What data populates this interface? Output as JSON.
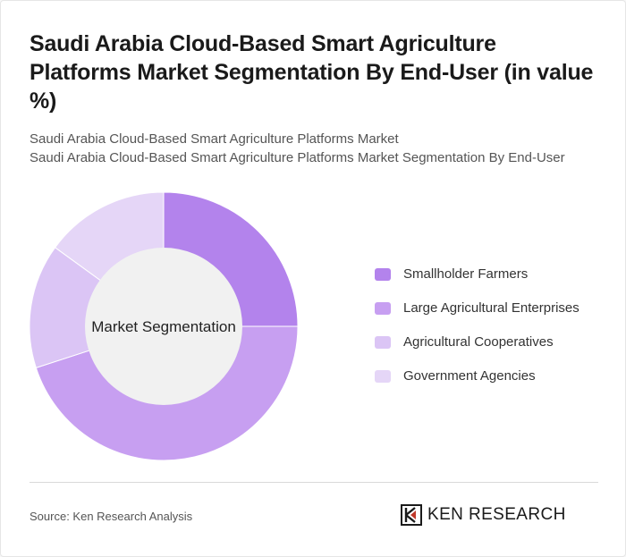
{
  "header": {
    "title": "Saudi Arabia Cloud-Based Smart Agriculture Platforms Market Segmentation By End-User (in value %)",
    "subtitle_line1": "Saudi Arabia Cloud-Based Smart Agriculture Platforms Market",
    "subtitle_line2": "Saudi Arabia Cloud-Based Smart Agriculture Platforms Market Segmentation By End-User"
  },
  "chart_data": {
    "type": "pie",
    "variant": "donut",
    "center_label": "Market Segmentation",
    "categories": [
      "Smallholder Farmers",
      "Large Agricultural Enterprises",
      "Agricultural Cooperatives",
      "Government Agencies"
    ],
    "values": [
      25,
      45,
      15,
      15
    ],
    "colors": [
      "#b383ec",
      "#c79ff1",
      "#dbc5f5",
      "#e5d6f7"
    ],
    "legend_position": "right"
  },
  "footer": {
    "source": "Source: Ken Research Analysis",
    "brand": "KEN RESEARCH",
    "brand_icon": "ken-research-logo-icon"
  }
}
